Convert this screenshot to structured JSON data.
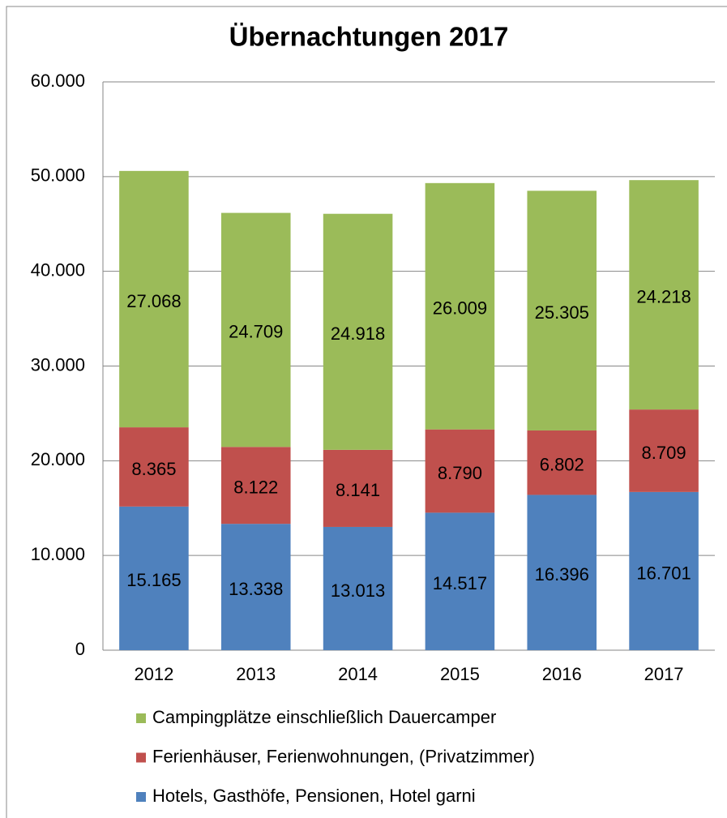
{
  "chart_data": {
    "type": "stacked_bar",
    "title": "Übernachtungen 2017",
    "categories": [
      "2012",
      "2013",
      "2014",
      "2015",
      "2016",
      "2017"
    ],
    "series": [
      {
        "name": "Hotels, Gasthöfe, Pensionen, Hotel garni",
        "color": "#4f81bd",
        "values": [
          15165,
          13338,
          13013,
          14517,
          16396,
          16701
        ],
        "value_labels": [
          "15.165",
          "13.338",
          "13.013",
          "14.517",
          "16.396",
          "16.701"
        ]
      },
      {
        "name": "Ferienhäuser, Ferienwohnungen, (Privatzimmer)",
        "color": "#c0504d",
        "values": [
          8365,
          8122,
          8141,
          8790,
          6802,
          8709
        ],
        "value_labels": [
          "8.365",
          "8.122",
          "8.141",
          "8.790",
          "6.802",
          "8.709"
        ]
      },
      {
        "name": "Campingplätze einschließlich Dauercamper",
        "color": "#9bbb59",
        "values": [
          27068,
          24709,
          24918,
          26009,
          25305,
          24218
        ],
        "value_labels": [
          "27.068",
          "24.709",
          "24.918",
          "26.009",
          "25.305",
          "24.218"
        ]
      }
    ],
    "ylim": [
      0,
      60000
    ],
    "yticks": [
      0,
      {
        "value": 10000,
        "label": "10.000"
      },
      {
        "value": 20000,
        "label": "20.000"
      },
      {
        "value": 30000,
        "label": "30.000"
      },
      {
        "value": 40000,
        "label": "40.000"
      },
      {
        "value": 50000,
        "label": "50.000"
      },
      {
        "value": 60000,
        "label": "60.000"
      }
    ],
    "grid": true,
    "legend": "bottom"
  }
}
